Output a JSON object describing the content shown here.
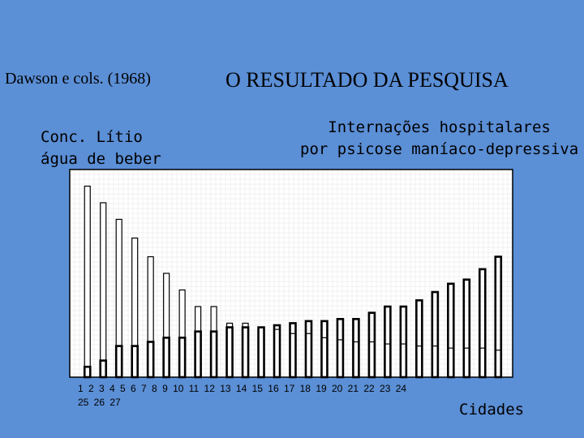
{
  "slide": {
    "subtitle_left": "Dawson e cols. (1968)",
    "title": "O RESULTADO DA  PESQUISA",
    "left_label_line1": "Conc. Lítio",
    "left_label_line2": "água de beber",
    "right_label_line1": "Internações hospitalares",
    "right_label_line2": "por  psicose maníaco-depressiva",
    "xtick_line1": "1   2  3   4   5   6   7   8   9  10  11  12  13  14  15   16  17  18  19  20  21   22  23  24",
    "xtick_line2": "25  26  27",
    "x_axis_label": "Cidades"
  },
  "colors": {
    "background": "#5b8fd6",
    "plot_area": "#ffffff",
    "grid": "#e4e4e4",
    "bar_fill": "#ffffff",
    "bar_stroke": "#000000"
  },
  "chart_data": {
    "type": "bar",
    "categories": [
      "1",
      "2",
      "3",
      "4",
      "5",
      "6",
      "7",
      "8",
      "9",
      "10",
      "11",
      "12",
      "13",
      "14",
      "15",
      "16",
      "17",
      "18",
      "19",
      "20",
      "21",
      "22",
      "23",
      "24",
      "25",
      "26",
      "27"
    ],
    "series": [
      {
        "name": "Conc. Lítio água de beber",
        "values": [
          92,
          84,
          76,
          67,
          58,
          50,
          42,
          34,
          34,
          26,
          26,
          24,
          23,
          21,
          21,
          19,
          18,
          17,
          17,
          16,
          16,
          15,
          15,
          14,
          14,
          14,
          13
        ]
      },
      {
        "name": "Internações hospitalares por psicose maníaco-depressiva",
        "values": [
          5,
          8,
          15,
          15,
          17,
          19,
          19,
          22,
          22,
          24,
          24,
          24,
          25,
          26,
          27,
          27,
          28,
          28,
          31,
          34,
          34,
          37,
          41,
          45,
          47,
          52,
          58
        ]
      }
    ],
    "ylim": [
      0,
      100
    ],
    "grid": true,
    "legend": "none",
    "xlabel": "Cidades",
    "ylabel": ""
  }
}
